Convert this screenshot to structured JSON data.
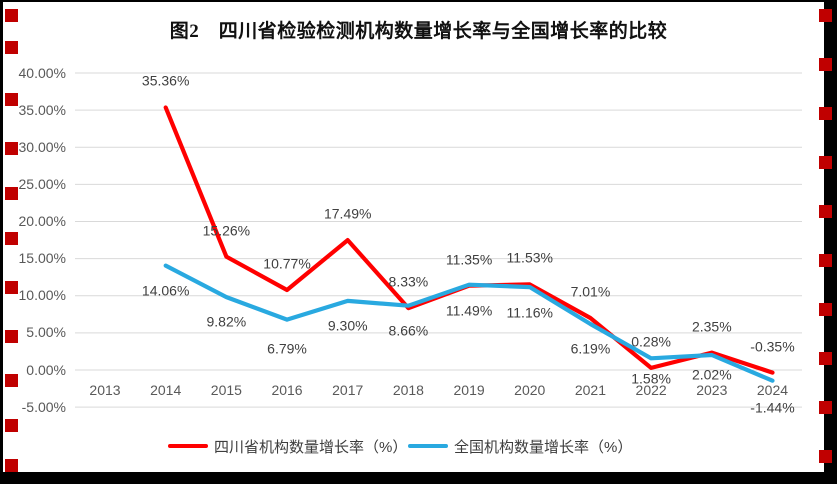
{
  "chart_data": {
    "type": "line",
    "title": "图2　四川省检验检测机构数量增长率与全国增长率的比较",
    "categories": [
      "2013",
      "2014",
      "2015",
      "2016",
      "2017",
      "2018",
      "2019",
      "2020",
      "2021",
      "2022",
      "2023",
      "2024"
    ],
    "series": [
      {
        "name": "四川省机构数量增长率（%）",
        "color": "#FF0000",
        "values": [
          null,
          35.36,
          15.26,
          10.77,
          17.49,
          8.33,
          11.35,
          11.53,
          7.01,
          0.28,
          2.35,
          -0.35
        ],
        "labels": [
          "",
          "35.36%",
          "15.26%",
          "10.77%",
          "17.49%",
          "8.33%",
          "11.35%",
          "11.53%",
          "7.01%",
          "0.28%",
          "2.35%",
          "-0.35%"
        ]
      },
      {
        "name": "全国机构数量增长率（%）",
        "color": "#29A9E0",
        "values": [
          null,
          14.06,
          9.82,
          6.79,
          9.3,
          8.66,
          11.49,
          11.16,
          6.19,
          1.58,
          2.02,
          -1.44
        ],
        "labels": [
          "",
          "14.06%",
          "9.82%",
          "6.79%",
          "9.30%",
          "8.66%",
          "11.49%",
          "11.16%",
          "6.19%",
          "1.58%",
          "2.02%",
          "-1.44%"
        ]
      }
    ],
    "y_axis": {
      "tick_labels": [
        "40.00%",
        "35.00%",
        "30.00%",
        "25.00%",
        "20.00%",
        "15.00%",
        "10.00%",
        "5.00%",
        "0.00%",
        "-5.00%"
      ],
      "tick_values": [
        40,
        35,
        30,
        25,
        20,
        15,
        10,
        5,
        0,
        -5
      ],
      "min": -5,
      "max": 40
    },
    "grid": "horizontal",
    "gridline_color": "#D9D9D9",
    "legend_position": "bottom"
  },
  "watermark": {
    "color": "#C00000"
  }
}
